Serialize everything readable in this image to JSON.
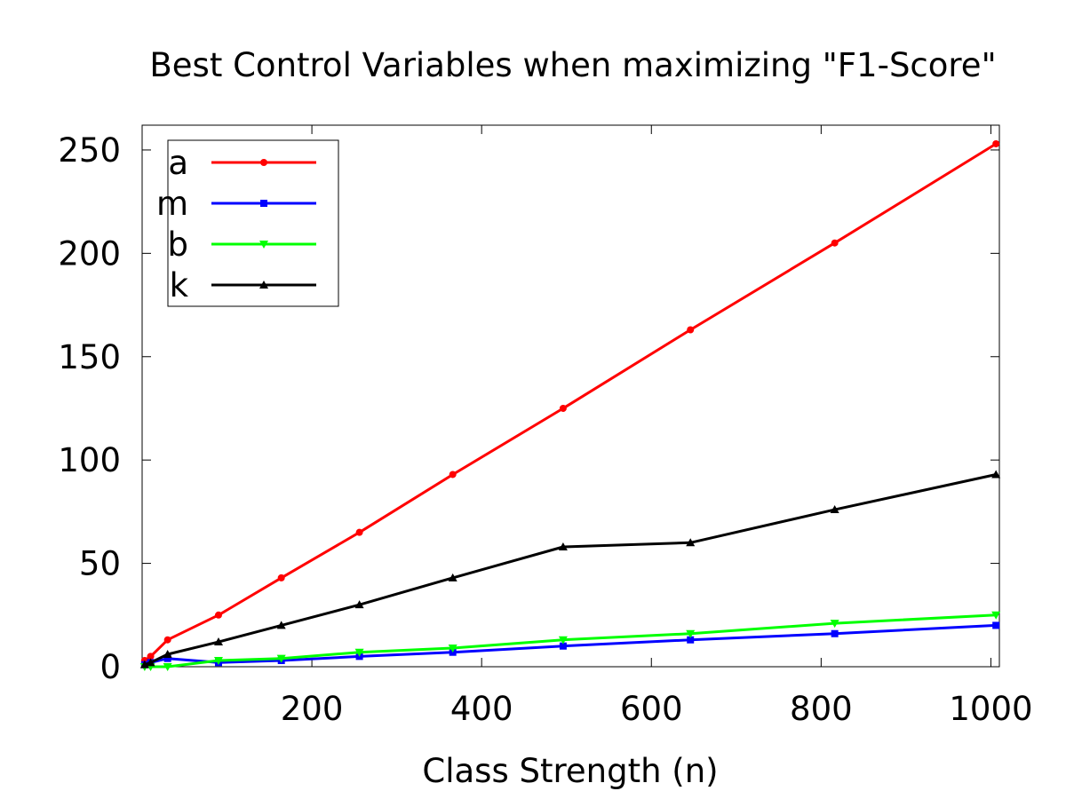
{
  "chart_data": {
    "type": "line",
    "title": "Best Control Variables when maximizing \"F1-Score\"",
    "xlabel": "Class Strength (n)",
    "ylabel": "",
    "xlim": [
      0,
      1010
    ],
    "ylim": [
      0,
      262
    ],
    "xticks": [
      200,
      400,
      600,
      800,
      1000
    ],
    "yticks": [
      0,
      50,
      100,
      150,
      200,
      250
    ],
    "grid": false,
    "legend_position": "top-left",
    "x": [
      3,
      10,
      30,
      90,
      164,
      256,
      366,
      496,
      646,
      816,
      1006
    ],
    "series": [
      {
        "name": "a",
        "color": "#ff0000",
        "marker": "circle",
        "values": [
          3,
          5,
          13,
          25,
          43,
          65,
          93,
          125,
          163,
          205,
          253
        ]
      },
      {
        "name": "m",
        "color": "#0000ff",
        "marker": "square",
        "values": [
          1,
          2,
          4,
          2,
          3,
          5,
          7,
          10,
          13,
          16,
          20
        ]
      },
      {
        "name": "b",
        "color": "#00ff00",
        "marker": "triangle-down",
        "values": [
          0,
          0,
          0,
          3,
          4,
          7,
          9,
          13,
          16,
          21,
          25
        ]
      },
      {
        "name": "k",
        "color": "#000000",
        "marker": "triangle-up",
        "values": [
          1,
          2,
          6,
          12,
          20,
          30,
          43,
          58,
          60,
          76,
          93
        ]
      }
    ]
  }
}
